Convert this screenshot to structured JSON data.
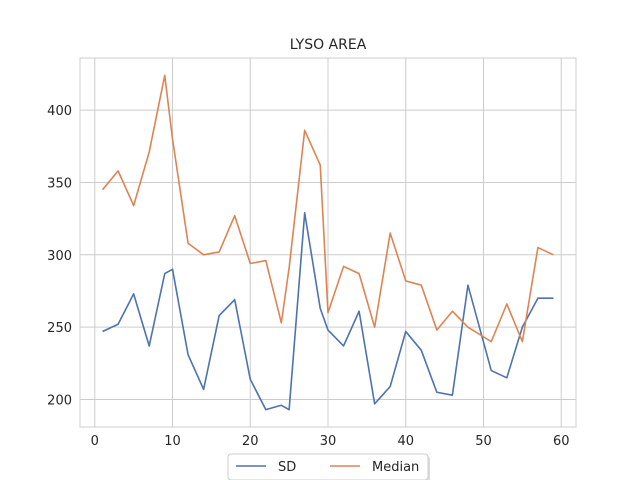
{
  "chart_data": {
    "type": "line",
    "title": "LYSO AREA",
    "xlabel": "",
    "ylabel": "",
    "xlim": [
      -1.9,
      61.9
    ],
    "ylim": [
      181,
      436
    ],
    "xticks": [
      0,
      10,
      20,
      30,
      40,
      50,
      60
    ],
    "yticks": [
      200,
      250,
      300,
      350,
      400
    ],
    "grid": true,
    "legend": {
      "position": "bottom-center",
      "columns": 2
    },
    "x": [
      1,
      3,
      5,
      7,
      9,
      10,
      12,
      14,
      16,
      18,
      20,
      22,
      24,
      25,
      27,
      29,
      30,
      32,
      34,
      36,
      38,
      40,
      42,
      44,
      46,
      48,
      51,
      53,
      55,
      57,
      59
    ],
    "series": [
      {
        "name": "SD",
        "color": "#4c72b0",
        "values": [
          247,
          252,
          273,
          237,
          287,
          290,
          231,
          207,
          258,
          269,
          214,
          193,
          196,
          193,
          329,
          263,
          248,
          237,
          261,
          197,
          209,
          247,
          234,
          205,
          203,
          279,
          220,
          215,
          250,
          270,
          270
        ]
      },
      {
        "name": "Median",
        "color": "#dd8452",
        "values": [
          345,
          358,
          334,
          371,
          424,
          380,
          308,
          300,
          302,
          327,
          294,
          296,
          253,
          291,
          386,
          362,
          260,
          292,
          287,
          250,
          315,
          282,
          279,
          248,
          261,
          250,
          240,
          266,
          240,
          305,
          300
        ]
      }
    ]
  }
}
